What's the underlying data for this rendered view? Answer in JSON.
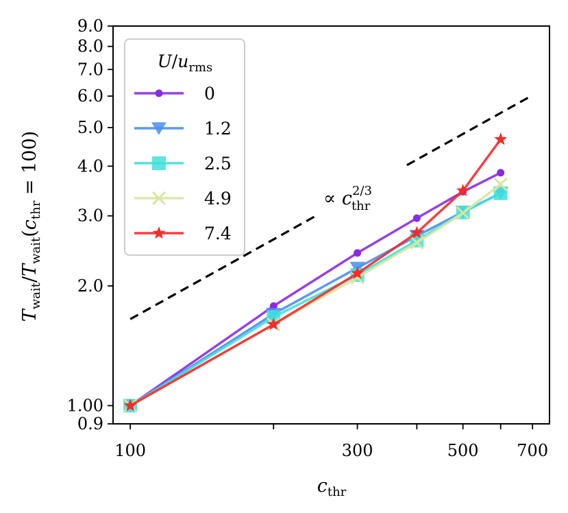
{
  "chart_data": {
    "type": "line",
    "xscale": "log",
    "yscale": "log",
    "xlim": [
      92,
      760
    ],
    "ylim": [
      0.9,
      9.0
    ],
    "xlabel": "c_thr",
    "ylabel": "T_wait / T_wait(c_thr = 100)",
    "x_ticks": [
      {
        "value": 100,
        "label": "100"
      },
      {
        "value": 200,
        "label": ""
      },
      {
        "value": 300,
        "label": "300"
      },
      {
        "value": 400,
        "label": ""
      },
      {
        "value": 500,
        "label": "500"
      },
      {
        "value": 600,
        "label": ""
      },
      {
        "value": 700,
        "label": "700"
      }
    ],
    "y_ticks": [
      {
        "value": 0.9,
        "label": "0.9"
      },
      {
        "value": 1.0,
        "label": "1.00"
      },
      {
        "value": 2.0,
        "label": "2.0"
      },
      {
        "value": 3.0,
        "label": "3.0"
      },
      {
        "value": 4.0,
        "label": "4.0"
      },
      {
        "value": 5.0,
        "label": "5.0"
      },
      {
        "value": 6.0,
        "label": "6.0"
      },
      {
        "value": 7.0,
        "label": "7.0"
      },
      {
        "value": 8.0,
        "label": "8.0"
      },
      {
        "value": 9.0,
        "label": "9.0"
      }
    ],
    "legend": {
      "title": "U/u_rms",
      "location": "upper-left"
    },
    "series": [
      {
        "name": "0",
        "color": "#8a2be2",
        "marker": "circle",
        "x": [
          100,
          200,
          300,
          400,
          500,
          600
        ],
        "y": [
          1.0,
          1.78,
          2.42,
          2.96,
          3.45,
          3.85
        ]
      },
      {
        "name": "1.2",
        "color": "#4a8ef0",
        "marker": "triangle-down",
        "x": [
          100,
          200,
          300,
          400,
          500,
          600
        ],
        "y": [
          1.0,
          1.7,
          2.22,
          2.67,
          3.07,
          3.42
        ]
      },
      {
        "name": "2.5",
        "color": "#3fe0dc",
        "marker": "square",
        "x": [
          100,
          200,
          300,
          400,
          500,
          600
        ],
        "y": [
          1.0,
          1.67,
          2.13,
          2.6,
          3.06,
          3.42
        ]
      },
      {
        "name": "4.9",
        "color": "#d6e6a0",
        "marker": "x",
        "x": [
          100,
          200,
          300,
          400,
          500,
          600
        ],
        "y": [
          1.0,
          1.6,
          2.1,
          2.57,
          3.05,
          3.6
        ]
      },
      {
        "name": "7.4",
        "color": "#f52a2a",
        "marker": "star",
        "x": [
          100,
          200,
          300,
          400,
          500,
          600
        ],
        "y": [
          1.0,
          1.6,
          2.15,
          2.72,
          3.47,
          4.67
        ]
      }
    ],
    "reference_line": {
      "label": "∝ c_thr^(2/3)",
      "x": [
        100,
        700
      ],
      "y": [
        1.65,
        6.03
      ],
      "style": "dashed",
      "color": "#000000"
    }
  }
}
